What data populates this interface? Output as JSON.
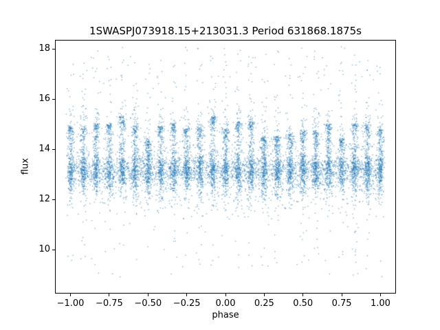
{
  "figure": {
    "background": "#ffffff"
  },
  "chart_data": {
    "type": "scatter",
    "title": "1SWASPJ073918.15+213031.3 Period 631868.1875s",
    "xlabel": "phase",
    "ylabel": "flux",
    "xlim": [
      -1.1,
      1.1
    ],
    "ylim": [
      8.25,
      18.36
    ],
    "xticks": {
      "values": [
        -1.0,
        -0.75,
        -0.5,
        -0.25,
        0.0,
        0.25,
        0.5,
        0.75,
        1.0
      ],
      "labels": [
        "−1.00",
        "−0.75",
        "−0.50",
        "−0.25",
        "0.00",
        "0.25",
        "0.50",
        "0.75",
        "1.00"
      ]
    },
    "yticks": {
      "values": [
        10,
        12,
        14,
        16,
        18
      ],
      "labels": [
        "10",
        "12",
        "14",
        "16",
        "18"
      ]
    },
    "grid": false,
    "legend": null,
    "marker": {
      "color": "#1f77b4",
      "alpha": 0.55,
      "size": 1.4
    },
    "distribution": {
      "seed": 11,
      "n_points": 11000,
      "n_columns": 25,
      "phase_range": [
        -1.0,
        1.0
      ],
      "column_fraction": 0.72,
      "column_phase_jitter": 0.011,
      "main_band": {
        "mean": 13.15,
        "sigma": 0.28
      },
      "wide_band": {
        "mean": 12.9,
        "sigma": 0.5
      },
      "streak_top_min": 14.3,
      "streak_top_max": 15.5,
      "flux_min": 8.6,
      "flux_max": 18.3
    }
  }
}
